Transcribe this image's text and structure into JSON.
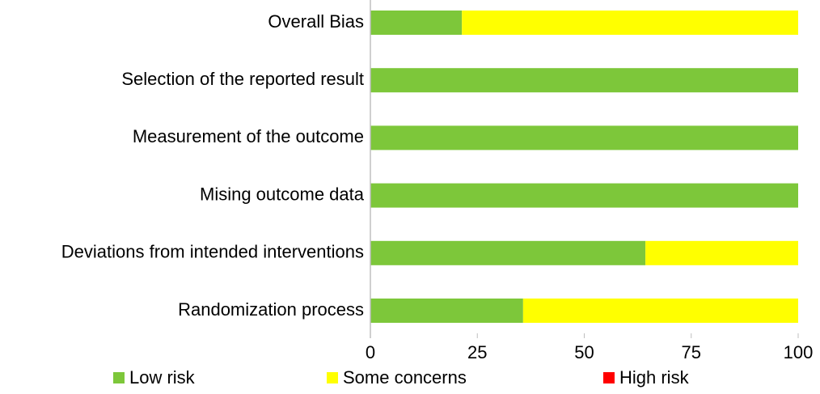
{
  "chart_data": {
    "type": "stacked-barh",
    "categories": [
      "Overall Bias",
      "Selection of the reported result",
      "Measurement of the outcome",
      "Mising outcome data",
      "Deviations from intended interventions",
      "Randomization process"
    ],
    "series": [
      {
        "name": "Low risk",
        "color": "#7dc73a",
        "values": [
          21.4,
          100,
          100,
          100,
          64.3,
          35.7
        ]
      },
      {
        "name": "Some concerns",
        "color": "#ffff00",
        "values": [
          78.6,
          0,
          0,
          0,
          35.7,
          64.3
        ]
      },
      {
        "name": "High risk",
        "color": "#ff0000",
        "values": [
          0,
          0,
          0,
          0,
          0,
          0
        ]
      }
    ],
    "xlim": [
      0,
      100
    ],
    "xticks": [
      0,
      25,
      50,
      75,
      100
    ],
    "grid": false,
    "legend": "bottom"
  }
}
